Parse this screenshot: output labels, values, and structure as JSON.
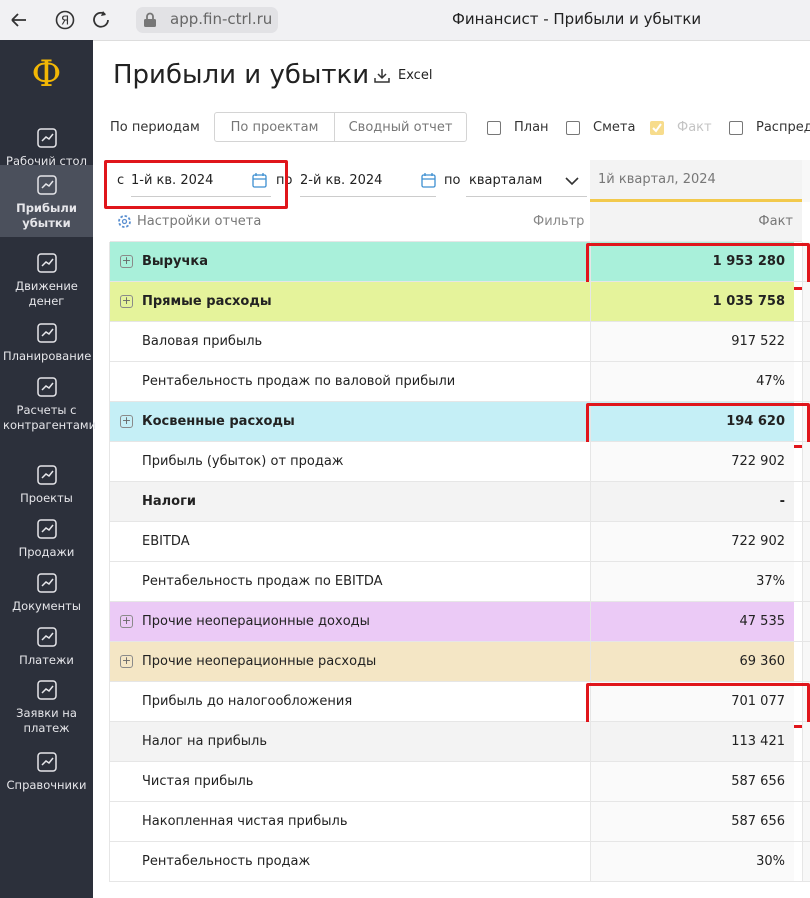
{
  "browser": {
    "url": "app.fin-ctrl.ru",
    "tab_title": "Финансист - Прибыли и убытки"
  },
  "sidebar": {
    "logo": "Ф",
    "items": [
      {
        "label": "Рабочий стол",
        "active": false
      },
      {
        "label": "Прибыли убытки",
        "active": true
      },
      {
        "label": "Движение денег",
        "active": false
      },
      {
        "label": "Планирование",
        "active": false
      },
      {
        "label": "Расчеты с контрагентами",
        "active": false
      },
      {
        "label": "Проекты",
        "active": false
      },
      {
        "label": "Продажи",
        "active": false
      },
      {
        "label": "Документы",
        "active": false
      },
      {
        "label": "Платежи",
        "active": false
      },
      {
        "label": "Заявки на платеж",
        "active": false
      },
      {
        "label": "Справочники",
        "active": false
      }
    ]
  },
  "header": {
    "title": "Прибыли и убытки",
    "export": "Excel"
  },
  "tabs": [
    "По периодам",
    "По проектам",
    "Сводный отчет"
  ],
  "checkboxes": [
    {
      "label": "План",
      "checked": false
    },
    {
      "label": "Смета",
      "checked": false
    },
    {
      "label": "Факт",
      "checked": true
    },
    {
      "label": "Распред",
      "checked": false
    }
  ],
  "filters": {
    "from_label": "с",
    "from": "1-й кв. 2024",
    "to_label": "по",
    "to": "2-й кв. 2024",
    "by_label": "по",
    "by": "кварталам"
  },
  "table": {
    "settings": "Настройки отчета",
    "filter": "Фильтр",
    "period": "1й квартал, 2024",
    "column": "Факт",
    "rows": [
      {
        "label": "Выручка",
        "value": "1 953 280",
        "expandable": true,
        "bold": true,
        "color": "#a9f0da",
        "highlighted": true
      },
      {
        "label": "Прямые расходы",
        "value": "1 035 758",
        "expandable": true,
        "bold": true,
        "color": "#e5f39b",
        "highlighted": false
      },
      {
        "label": "Валовая прибыль",
        "value": "917 522",
        "expandable": false,
        "bold": false,
        "color": "#ffffff",
        "highlighted": false
      },
      {
        "label": "Рентабельность продаж по валовой прибыли",
        "value": "47%",
        "expandable": false,
        "bold": false,
        "color": "#ffffff",
        "highlighted": false
      },
      {
        "label": "Косвенные расходы",
        "value": "194 620",
        "expandable": true,
        "bold": true,
        "color": "#c5eff6",
        "highlighted": true
      },
      {
        "label": "Прибыль (убыток) от продаж",
        "value": "722 902",
        "expandable": false,
        "bold": false,
        "color": "#ffffff",
        "highlighted": false
      },
      {
        "label": "Налоги",
        "value": "-",
        "expandable": false,
        "bold": true,
        "color": "#f3f3f3",
        "highlighted": false
      },
      {
        "label": "EBITDA",
        "value": "722 902",
        "expandable": false,
        "bold": false,
        "color": "#ffffff",
        "highlighted": false
      },
      {
        "label": "Рентабельность продаж по EBITDA",
        "value": "37%",
        "expandable": false,
        "bold": false,
        "color": "#ffffff",
        "highlighted": false
      },
      {
        "label": "Прочие неоперационные доходы",
        "value": "47 535",
        "expandable": true,
        "bold": false,
        "color": "#ebcaf6",
        "highlighted": false
      },
      {
        "label": "Прочие неоперационные расходы",
        "value": "69 360",
        "expandable": true,
        "bold": false,
        "color": "#f4e6c5",
        "highlighted": false
      },
      {
        "label": "Прибыль до налогообложения",
        "value": "701 077",
        "expandable": false,
        "bold": false,
        "color": "#ffffff",
        "highlighted": true
      },
      {
        "label": "Налог на прибыль",
        "value": "113 421",
        "expandable": false,
        "bold": false,
        "color": "#f3f3f3",
        "highlighted": false
      },
      {
        "label": "Чистая прибыль",
        "value": "587 656",
        "expandable": false,
        "bold": false,
        "color": "#ffffff",
        "highlighted": false
      },
      {
        "label": "Накопленная чистая прибыль",
        "value": "587 656",
        "expandable": false,
        "bold": false,
        "color": "#ffffff",
        "highlighted": false
      },
      {
        "label": "Рентабельность продаж",
        "value": "30%",
        "expandable": false,
        "bold": false,
        "color": "#ffffff",
        "highlighted": false
      }
    ]
  }
}
